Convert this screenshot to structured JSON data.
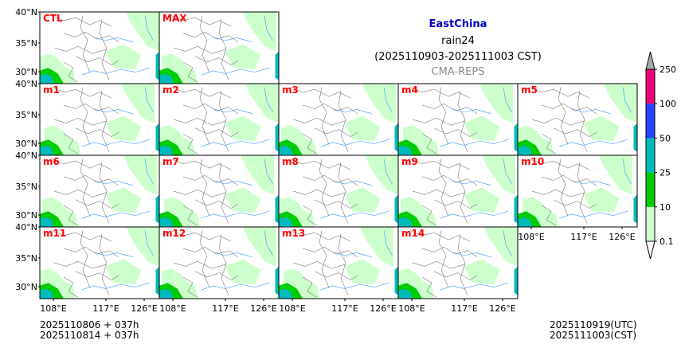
{
  "title": {
    "region": "EastChina",
    "variable": "rain24",
    "period": "(2025110903-2025111003 CST)",
    "model": "CMA-REPS",
    "region_color": "#0000cc",
    "model_color": "#888888"
  },
  "panels": [
    {
      "label": "CTL",
      "row": 0,
      "col": 0
    },
    {
      "label": "MAX",
      "row": 0,
      "col": 1
    },
    {
      "label": "m1",
      "row": 1,
      "col": 0
    },
    {
      "label": "m2",
      "row": 1,
      "col": 1
    },
    {
      "label": "m3",
      "row": 1,
      "col": 2
    },
    {
      "label": "m4",
      "row": 1,
      "col": 3
    },
    {
      "label": "m5",
      "row": 1,
      "col": 4
    },
    {
      "label": "m6",
      "row": 2,
      "col": 0
    },
    {
      "label": "m7",
      "row": 2,
      "col": 1
    },
    {
      "label": "m8",
      "row": 2,
      "col": 2
    },
    {
      "label": "m9",
      "row": 2,
      "col": 3
    },
    {
      "label": "m10",
      "row": 2,
      "col": 4
    },
    {
      "label": "m11",
      "row": 3,
      "col": 0
    },
    {
      "label": "m12",
      "row": 3,
      "col": 1
    },
    {
      "label": "m13",
      "row": 3,
      "col": 2
    },
    {
      "label": "m14",
      "row": 3,
      "col": 3
    }
  ],
  "panel_label_color": "#ff0000",
  "lat_ticks": [
    "40°N",
    "35°N",
    "30°N"
  ],
  "lon_ticks": [
    "108°E",
    "117°E",
    "126°E"
  ],
  "colorbar": {
    "levels": [
      "0.1",
      "10",
      "25",
      "50",
      "100",
      "250"
    ],
    "colors": [
      "#ccffcc",
      "#00cc00",
      "#00bbbb",
      "#2244ff",
      "#ee0077"
    ],
    "over_color": "#aaaaaa",
    "under_color": "#ffffff"
  },
  "footer": {
    "init_utc": "2025110806  +  037h",
    "init_cst": "2025110814  +  037h",
    "valid_utc": "2025110919(UTC)",
    "valid_cst": "2025111003(CST)"
  }
}
